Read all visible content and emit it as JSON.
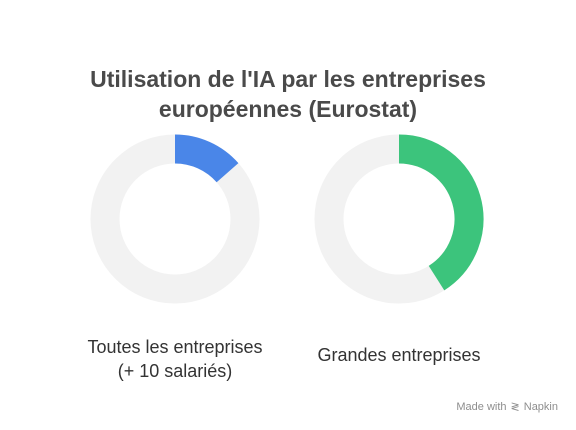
{
  "chart_data": {
    "type": "pie",
    "title": [
      "Utilisation de l'IA par les entreprises",
      "européennes (Eurostat)"
    ],
    "charts": [
      {
        "label_lines": [
          "Toutes les entreprises",
          "(+ 10 salariés)"
        ],
        "value_percent": 13.5,
        "color": "#4a86e8"
      },
      {
        "label_lines": [
          "Grandes entreprises"
        ],
        "value_percent": 41,
        "color": "#3cc47c"
      }
    ],
    "track_color": "#f2f2f2"
  },
  "footer": {
    "made_with": "Made with",
    "brand": "Napkin",
    "icon": "napkin-logo-icon"
  }
}
